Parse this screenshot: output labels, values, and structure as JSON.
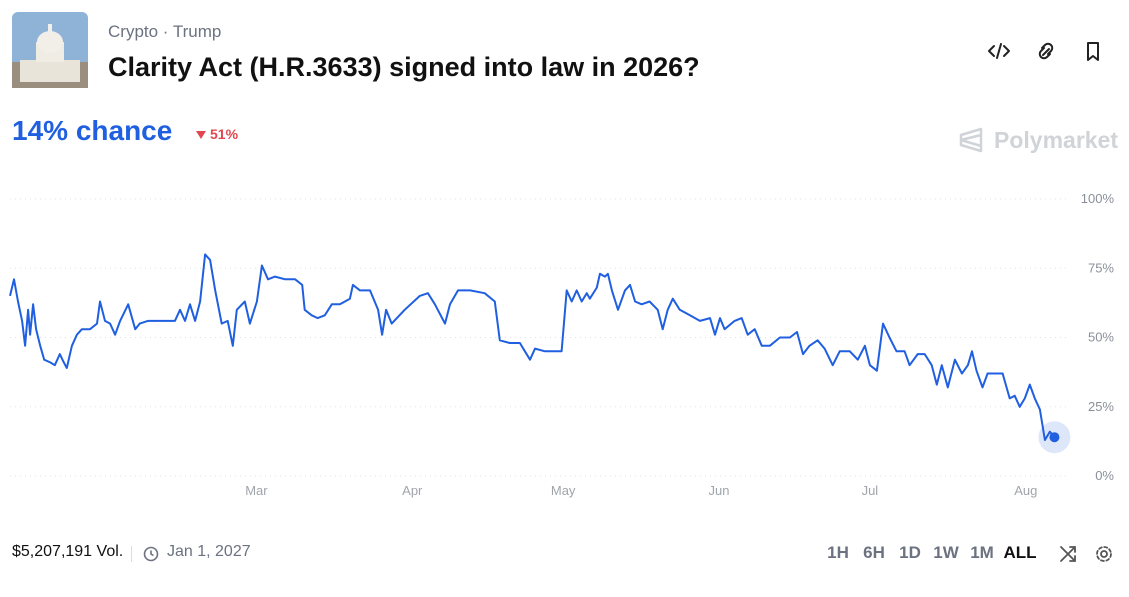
{
  "header": {
    "tags": [
      "Crypto",
      "Trump"
    ],
    "title": "Clarity Act (H.R.3633) signed into law in 2026?",
    "chance": "14% chance",
    "change": "51%",
    "brand": "Polymarket"
  },
  "chart_data": {
    "type": "line",
    "color": "#1f5fe0",
    "grid": true,
    "xlim": [
      10,
      220
    ],
    "ylim": [
      0,
      100
    ],
    "xticks": [
      {
        "value": 59,
        "label": "Mar"
      },
      {
        "value": 90,
        "label": "Apr"
      },
      {
        "value": 120,
        "label": "May"
      },
      {
        "value": 151,
        "label": "Jun"
      },
      {
        "value": 181,
        "label": "Jul"
      },
      {
        "value": 212,
        "label": "Aug"
      }
    ],
    "yticks": [
      {
        "value": 0,
        "label": "0%"
      },
      {
        "value": 25,
        "label": "25%"
      },
      {
        "value": 50,
        "label": "50%"
      },
      {
        "value": 75,
        "label": "75%"
      },
      {
        "value": 100,
        "label": "100%"
      }
    ],
    "x": [
      10.0,
      10.8,
      11.6,
      12.4,
      13.0,
      13.6,
      14.0,
      14.6,
      15.2,
      16.0,
      16.8,
      18.0,
      18.9,
      19.9,
      20.7,
      21.3,
      22.3,
      23.3,
      24.3,
      25.9,
      27.3,
      27.9,
      28.9,
      29.9,
      30.9,
      31.9,
      33.5,
      34.9,
      35.8,
      37.4,
      38.8,
      40.8,
      42.8,
      43.8,
      44.8,
      45.8,
      46.8,
      47.8,
      48.8,
      49.8,
      50.8,
      52.1,
      53.3,
      54.3,
      55.1,
      56.7,
      57.7,
      59.1,
      60.1,
      61.3,
      62.7,
      64.7,
      66.7,
      68.1,
      68.6,
      70.0,
      71.2,
      72.6,
      74.0,
      75.6,
      76.6,
      77.6,
      78.2,
      79.6,
      81.6,
      83.2,
      84.0,
      84.8,
      85.9,
      88.5,
      91.5,
      93.1,
      94.5,
      96.5,
      97.5,
      99.1,
      101.5,
      104.4,
      106.4,
      107.4,
      109.4,
      111.4,
      112.4,
      113.4,
      114.4,
      116.4,
      118.3,
      119.7,
      120.7,
      121.7,
      122.7,
      123.7,
      124.7,
      125.3,
      126.7,
      127.3,
      128.3,
      128.9,
      129.7,
      130.9,
      132.3,
      133.3,
      134.3,
      135.6,
      137.2,
      138.8,
      139.8,
      140.8,
      141.8,
      143.2,
      145.2,
      147.2,
      149.2,
      150.2,
      151.2,
      152.1,
      154.1,
      155.5,
      156.7,
      158.1,
      159.5,
      161.1,
      163.1,
      165.1,
      166.5,
      167.7,
      169.0,
      170.6,
      172.0,
      173.6,
      175.0,
      177.0,
      178.6,
      180.0,
      181.0,
      182.4,
      183.6,
      184.9,
      186.3,
      187.9,
      188.9,
      190.5,
      191.9,
      193.3,
      194.3,
      195.3,
      196.5,
      197.9,
      199.3,
      200.5,
      201.3,
      202.2,
      203.4,
      204.4,
      205.8,
      207.4,
      208.8,
      209.8,
      210.8,
      211.8,
      212.8,
      213.8,
      214.8,
      215.8,
      216.8,
      217.7
    ],
    "values": [
      65,
      71,
      63,
      56,
      47,
      60,
      51,
      62,
      53,
      47,
      42,
      41,
      40,
      44,
      41,
      39,
      47,
      51,
      53,
      53,
      55,
      63,
      56,
      55,
      51,
      56,
      62,
      53,
      55,
      56,
      56,
      56,
      56,
      60,
      56,
      62,
      56,
      63,
      80,
      78,
      67,
      55,
      56,
      47,
      60,
      63,
      55,
      63,
      76,
      71,
      72,
      71,
      71,
      69,
      60,
      58,
      57,
      58,
      62,
      62,
      63,
      64,
      69,
      67,
      67,
      60,
      51,
      60,
      55,
      60,
      65,
      66,
      62,
      55,
      62,
      67,
      67,
      66,
      63,
      49,
      48,
      48,
      45,
      42,
      46,
      45,
      45,
      45,
      67,
      63,
      67,
      63,
      66,
      64,
      68,
      73,
      72,
      73,
      67,
      60,
      67,
      69,
      63,
      62,
      63,
      60,
      53,
      60,
      64,
      60,
      58,
      56,
      57,
      51,
      57,
      53,
      56,
      57,
      51,
      53,
      47,
      47,
      50,
      50,
      52,
      44,
      47,
      49,
      46,
      40,
      45,
      45,
      42,
      47,
      40,
      38,
      55,
      50,
      45,
      45,
      40,
      44,
      44,
      40,
      33,
      40,
      32,
      42,
      37,
      40,
      45,
      38,
      32,
      37,
      37,
      37,
      28,
      29,
      25,
      28,
      33,
      28,
      24,
      13,
      16,
      14
    ]
  },
  "footer": {
    "volume": "$5,207,191 Vol.",
    "end_date": "Jan 1, 2027",
    "ranges": [
      "1H",
      "6H",
      "1D",
      "1W",
      "1M",
      "ALL"
    ]
  }
}
